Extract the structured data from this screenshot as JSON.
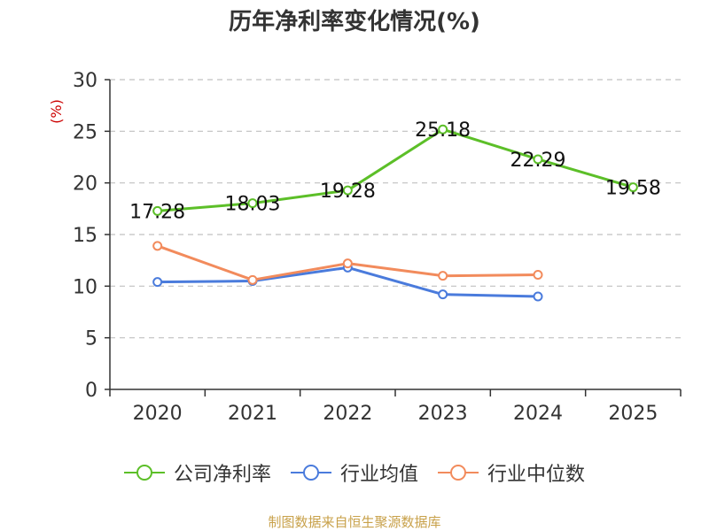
{
  "colors": {
    "company": "#5cbf28",
    "industry_avg": "#4a7bdc",
    "industry_median": "#f28b5c",
    "grid": "#c0c0c0",
    "axis": "#333333",
    "unit": "#cc0000",
    "source": "#c8a14a"
  },
  "chart_data": {
    "type": "line",
    "title": "历年净利率变化情况(%)",
    "ylabel": "(%)",
    "xlabel": "",
    "categories": [
      "2020",
      "2021",
      "2022",
      "2023",
      "2024",
      "2025"
    ],
    "ylim": [
      0,
      30
    ],
    "yticks": [
      0,
      5,
      10,
      15,
      20,
      25,
      30
    ],
    "grid": true,
    "legend_position": "bottom",
    "series": [
      {
        "name": "公司净利率",
        "key": "company",
        "values": [
          17.28,
          18.03,
          19.28,
          25.18,
          22.29,
          19.58
        ],
        "labels": true
      },
      {
        "name": "行业均值",
        "key": "industry_avg",
        "values": [
          10.4,
          10.5,
          11.8,
          9.2,
          9.0,
          null
        ],
        "labels": false
      },
      {
        "name": "行业中位数",
        "key": "industry_median",
        "values": [
          13.9,
          10.6,
          12.2,
          11.0,
          11.1,
          null
        ],
        "labels": false
      }
    ]
  },
  "source_note": "制图数据来自恒生聚源数据库"
}
